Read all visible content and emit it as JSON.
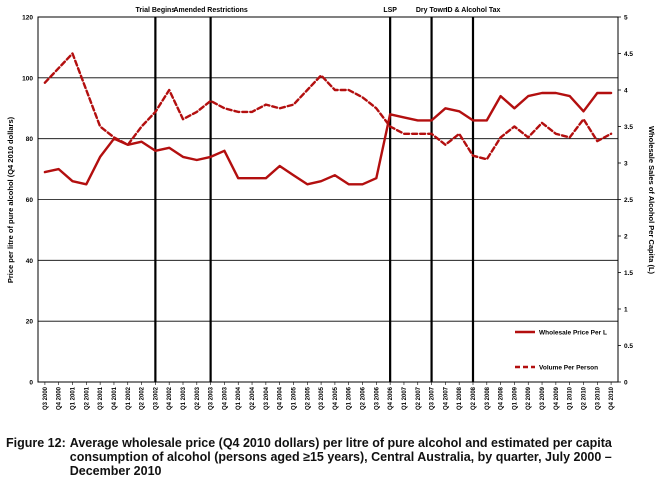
{
  "chart_data": {
    "type": "line",
    "ylabel_left": "Price per litre of pure alcohol (Q4 2010 dollars)",
    "ylabel_right": "Wholesale Sales of Alcohol Per Capita (L)",
    "ylim_left": [
      0,
      120
    ],
    "yticks_left": [
      "0",
      "20",
      "40",
      "60",
      "80",
      "100",
      "120"
    ],
    "ylim_right": [
      0,
      5
    ],
    "yticks_right": [
      "0",
      "0.5",
      "1",
      "1.5",
      "2",
      "2.5",
      "3",
      "3.5",
      "4",
      "4.5",
      "5"
    ],
    "grid": "horizontal",
    "legend_position": "bottom-right",
    "categories": [
      "Q3 2000",
      "Q4 2000",
      "Q1 2001",
      "Q2 2001",
      "Q3 2001",
      "Q4 2001",
      "Q1 2002",
      "Q2 2002",
      "Q3 2002",
      "Q4 2002",
      "Q1 2003",
      "Q2 2003",
      "Q3 2003",
      "Q4 2003",
      "Q1 2004",
      "Q2 2004",
      "Q3 2004",
      "Q4 2004",
      "Q1 2005",
      "Q2 2005",
      "Q3 2005",
      "Q4 2005",
      "Q1 2006",
      "Q2 2006",
      "Q3 2006",
      "Q4 2006",
      "Q1 2007",
      "Q2 2007",
      "Q3 2007",
      "Q4 2007",
      "Q1 2008",
      "Q2 2008",
      "Q3 2008",
      "Q4 2008",
      "Q1 2009",
      "Q2 2009",
      "Q3 2009",
      "Q4 2009",
      "Q1 2010",
      "Q2 2010",
      "Q3 2010",
      "Q4 2010"
    ],
    "series": [
      {
        "name": "Wholesale Price Per L",
        "axis": "left",
        "style": "solid",
        "color": "#b30f0f",
        "values": [
          69,
          70,
          66,
          65,
          74,
          80,
          78,
          79,
          76,
          77,
          74,
          73,
          74,
          76,
          67,
          67,
          67,
          71,
          68,
          65,
          66,
          68,
          65,
          65,
          67,
          88,
          87,
          86,
          86,
          90,
          89,
          86,
          86,
          94,
          90,
          94,
          95,
          95,
          94,
          89,
          95,
          95
        ]
      },
      {
        "name": "Volume Per Person",
        "axis": "right",
        "style": "dashed",
        "color": "#b30f0f",
        "values": [
          4.1,
          4.3,
          4.5,
          4.0,
          3.5,
          3.35,
          3.25,
          3.5,
          3.7,
          4.0,
          3.6,
          3.7,
          3.85,
          3.75,
          3.7,
          3.7,
          3.8,
          3.75,
          3.8,
          4.0,
          4.2,
          4.0,
          4.0,
          3.9,
          3.75,
          3.5,
          3.4,
          3.4,
          3.4,
          3.25,
          3.4,
          3.1,
          3.05,
          3.35,
          3.5,
          3.35,
          3.55,
          3.4,
          3.35,
          3.6,
          3.3,
          3.4
        ]
      }
    ],
    "events": [
      {
        "label": "Trial Begins",
        "category": "Q3 2002"
      },
      {
        "label": "Amended Restrictions",
        "category": "Q3 2003"
      },
      {
        "label": "LSP",
        "category": "Q4 2006"
      },
      {
        "label": "Dry Town",
        "category": "Q3 2007"
      },
      {
        "label": "ID & Alcohol Tax",
        "category": "Q2 2008"
      }
    ]
  },
  "caption": {
    "label": "Figure 12:",
    "text": "Average wholesale price (Q4 2010 dollars) per litre of pure alcohol and estimated per capita consumption of alcohol (persons aged ≥15 years), Central Australia, by quarter, July 2000 – December 2010"
  }
}
